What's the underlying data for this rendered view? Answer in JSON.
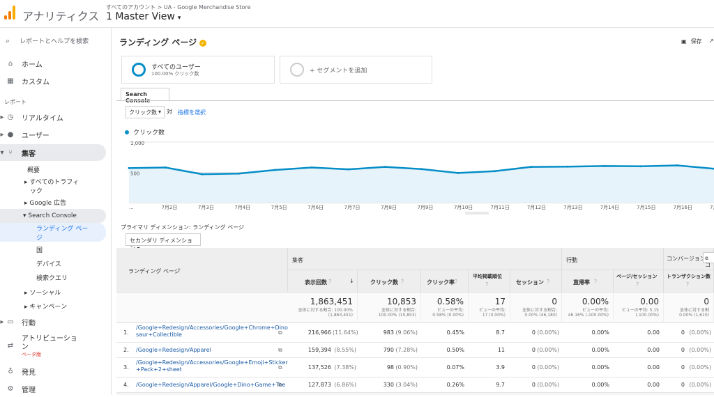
{
  "app": {
    "title": "アナリティクス",
    "breadcrumb": "すべてのアカウント > UA - Google Merchandise Store",
    "view": "1 Master View",
    "caret": "▾"
  },
  "sidebar": {
    "search": "レポートとヘルプを検索",
    "home": "ホーム",
    "custom": "カスタム",
    "reports_label": "レポート",
    "realtime": "リアルタイム",
    "users": "ユーザー",
    "acquisition": "集客",
    "overview": "概要",
    "all_traffic_1": "すべてのトラフィ",
    "all_traffic_2": "ック",
    "google_ads": "Google 広告",
    "search_console": "Search Console",
    "landing_1": "ランディング ペー",
    "landing_2": "ジ",
    "country": "国",
    "device": "デバイス",
    "queries": "検索クエリ",
    "social": "ソーシャル",
    "campaign": "キャンペーン",
    "behavior": "行動",
    "attribution_1": "アトリビューショ",
    "attribution_2": "ン",
    "beta": "ベータ版",
    "discover": "発見",
    "admin": "管理"
  },
  "page": {
    "title": "ランディング ページ",
    "save": "保存"
  },
  "segments": {
    "s1": "すべてのユーザー",
    "s1_sub": "100.00% クリック数",
    "add": "+ セグメントを追加"
  },
  "tab": "Search Console",
  "controls": {
    "metric": "クリック数",
    "vs": "対",
    "pick": "指標を選択",
    "legend": "クリック数"
  },
  "chart_data": {
    "type": "line",
    "series": [
      {
        "name": "クリック数",
        "values": [
          570,
          580,
          470,
          480,
          540,
          580,
          550,
          590,
          555,
          490,
          520,
          590,
          595,
          605,
          600,
          615,
          560
        ]
      }
    ],
    "categories": [
      "7月1日",
      "7月2日",
      "7月3日",
      "7月4日",
      "7月5日",
      "7月6日",
      "7月7日",
      "7月8日",
      "7月9日",
      "7月10日",
      "7月11日",
      "7月12日",
      "7月13日",
      "7月14日",
      "7月15日",
      "7月16日",
      "7月17日"
    ],
    "x_tick_labels": [
      "...",
      "7月2日",
      "7月3日",
      "7月4日",
      "7月5日",
      "7月6日",
      "7月7日",
      "7月8日",
      "7月9日",
      "7月10日",
      "7月11日",
      "7月12日",
      "7月13日",
      "7月14日",
      "7月15日",
      "7月16日",
      "7月17"
    ],
    "y_ticks": [
      "1,000",
      "500"
    ],
    "ylim": [
      0,
      1000
    ],
    "color": "#058dc7"
  },
  "dims": {
    "primary": "プライマリ ディメンション:  ランディング ページ",
    "secondary": "セカンダリ ディメンション ▾"
  },
  "table": {
    "col_landing": "ランディング ページ",
    "grp_acq": "集客",
    "grp_beh": "行動",
    "grp_conv": "コンバージョン",
    "conv_sel": "e コ",
    "h_impr": "表示回数",
    "h_click": "クリック数",
    "h_ctr": "クリック率",
    "h_pos_1": "平均掲載順位",
    "h_sess": "セッション",
    "h_bounce": "直帰率",
    "h_pps": "ページ/セッション",
    "h_trans": "トランザクション数",
    "totals": [
      {
        "big": "1,863,451",
        "s1": "全体に対する割合: 100.00%",
        "s2": "(1,863,451)"
      },
      {
        "big": "10,853",
        "s1": "全体に対する割合:",
        "s2": "100.00% (10,853)"
      },
      {
        "big": "0.58%",
        "s1": "ビューの平均:",
        "s2": "0.58% (0.00%)"
      },
      {
        "big": "17",
        "s1": "ビューの平均:",
        "s2": "17 (0.00%)"
      },
      {
        "big": "0",
        "s1": "全体に対する割合:",
        "s2": "0.00% (46,180)"
      },
      {
        "big": "0.00%",
        "s1": "ビューの平均:",
        "s2": "46.16% (-100.00%)"
      },
      {
        "big": "0.00",
        "s1": "ビューの平均: 5.15",
        "s2": "(-100.00%)"
      },
      {
        "big": "0",
        "s1": "全体に対する割",
        "s2": "0.00% (1,610)"
      }
    ],
    "rows": [
      {
        "n": "1.",
        "p1": "/Google+Redesign/Accessories/Google+Chrome+Dino",
        "p2": "saur+Collectible",
        "impr": "216,966",
        "ip": "(11.64%)",
        "cl": "983",
        "cp": "(9.06%)",
        "ctr": "0.45%",
        "pos": "8.7",
        "ses": "0",
        "sp": "(0.00%)",
        "br": "0.00%",
        "pps": "0.00",
        "tr": "0",
        "tp": "(0.00%)"
      },
      {
        "n": "2.",
        "p1": "/Google+Redesign/Apparel",
        "p2": "",
        "impr": "159,394",
        "ip": "(8.55%)",
        "cl": "790",
        "cp": "(7.28%)",
        "ctr": "0.50%",
        "pos": "11",
        "ses": "0",
        "sp": "(0.00%)",
        "br": "0.00%",
        "pps": "0.00",
        "tr": "0",
        "tp": "(0.00%)"
      },
      {
        "n": "3.",
        "p1": "/Google+Redesign/Accessories/Google+Emoji+Sticker",
        "p2": "+Pack+2+sheet",
        "impr": "137,526",
        "ip": "(7.38%)",
        "cl": "98",
        "cp": "(0.90%)",
        "ctr": "0.07%",
        "pos": "3.9",
        "ses": "0",
        "sp": "(0.00%)",
        "br": "0.00%",
        "pps": "0.00",
        "tr": "0",
        "tp": "(0.00%)"
      },
      {
        "n": "4.",
        "p1": "/Google+Redesign/Apparel/Google+Dino+Game+Tee",
        "p2": "",
        "impr": "127,873",
        "ip": "(6.86%)",
        "cl": "330",
        "cp": "(3.04%)",
        "ctr": "0.26%",
        "pos": "9.7",
        "ses": "0",
        "sp": "(0.00%)",
        "br": "0.00%",
        "pps": "0.00",
        "tr": "0",
        "tp": "(0.00%)"
      }
    ]
  }
}
